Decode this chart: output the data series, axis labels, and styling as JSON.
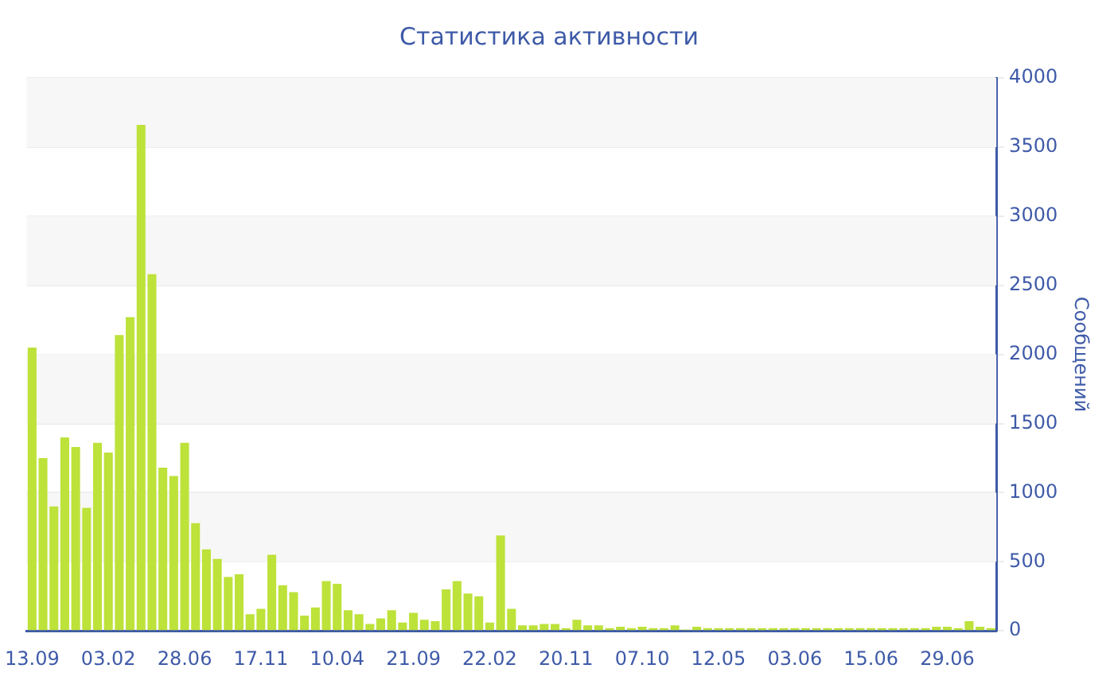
{
  "chart_data": {
    "type": "bar",
    "title": "Статистика активности",
    "ylabel": "Сообщений",
    "categories": [
      "13.09",
      null,
      null,
      null,
      null,
      null,
      null,
      "03.02",
      null,
      null,
      null,
      null,
      null,
      null,
      "28.06",
      null,
      null,
      null,
      null,
      null,
      null,
      "17.11",
      null,
      null,
      null,
      null,
      null,
      null,
      "10.04",
      null,
      null,
      null,
      null,
      null,
      null,
      "21.09",
      null,
      null,
      null,
      null,
      null,
      null,
      "22.02",
      null,
      null,
      null,
      null,
      null,
      null,
      "20.11",
      null,
      null,
      null,
      null,
      null,
      null,
      "07.10",
      null,
      null,
      null,
      null,
      null,
      null,
      "12.05",
      null,
      null,
      null,
      null,
      null,
      null,
      "03.06",
      null,
      null,
      null,
      null,
      null,
      null,
      "15.06",
      null,
      null,
      null,
      null,
      null,
      null,
      "29.06",
      null,
      null,
      null,
      null
    ],
    "values": [
      2050,
      1250,
      900,
      1400,
      1330,
      890,
      1360,
      1290,
      2140,
      2270,
      3660,
      2580,
      1180,
      1120,
      1360,
      780,
      590,
      520,
      390,
      410,
      120,
      160,
      550,
      330,
      280,
      110,
      170,
      360,
      340,
      150,
      120,
      50,
      90,
      150,
      60,
      130,
      80,
      70,
      300,
      360,
      270,
      250,
      60,
      690,
      160,
      40,
      40,
      50,
      50,
      20,
      80,
      40,
      40,
      20,
      30,
      20,
      30,
      20,
      20,
      40,
      10,
      30,
      20,
      20,
      20,
      20,
      20,
      20,
      20,
      20,
      20,
      20,
      20,
      20,
      20,
      20,
      20,
      20,
      20,
      20,
      20,
      20,
      20,
      30,
      30,
      20,
      70,
      30,
      20
    ],
    "color": "#bde23a",
    "ylim": [
      0,
      4000
    ],
    "yticks": [
      0,
      500,
      1000,
      1500,
      2000,
      2500,
      3000,
      3500,
      4000
    ],
    "grid": "y"
  }
}
